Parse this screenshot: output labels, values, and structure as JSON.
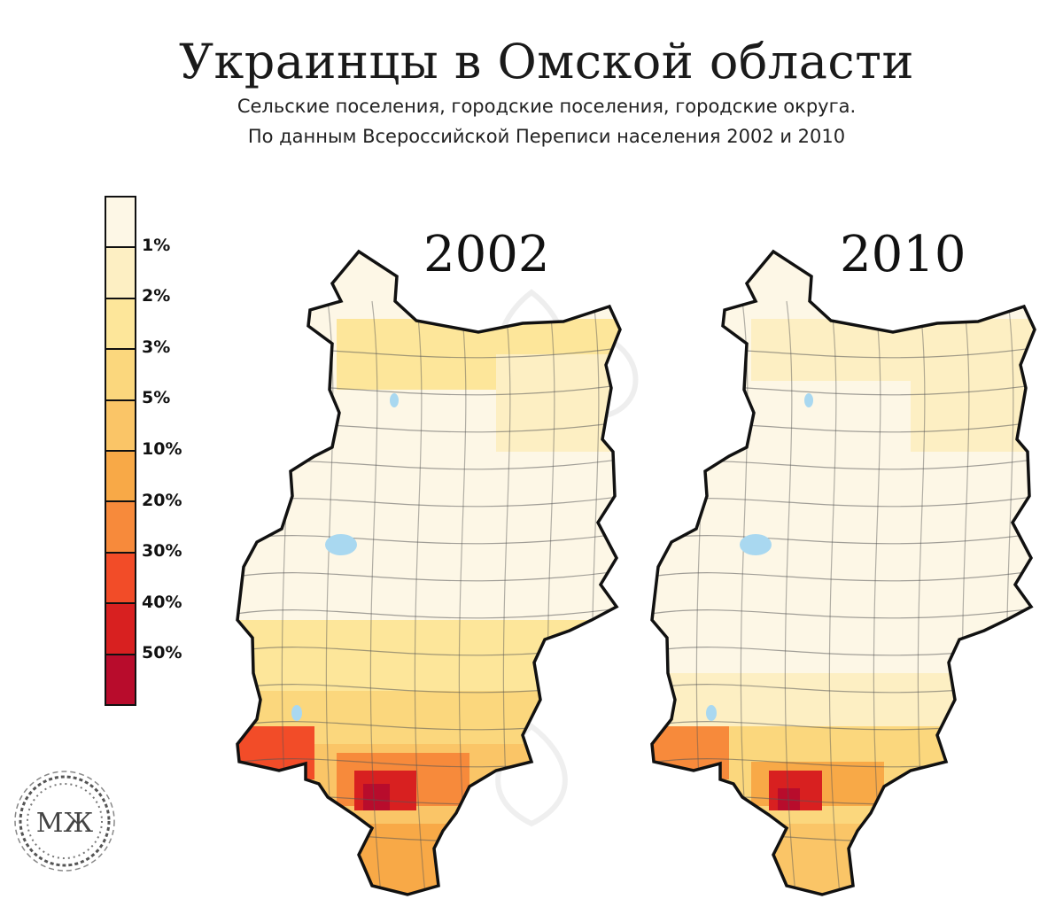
{
  "title": "Украинцы в Омской области",
  "subtitle_1": "Сельские поселения, городские поселения, городские округа.",
  "subtitle_2": "По данным Всероссийской Переписи населения  2002 и 2010",
  "years": {
    "left": "2002",
    "right": "2010"
  },
  "legend": {
    "colors": [
      "#fdf7e6",
      "#fdefc3",
      "#fde69a",
      "#fbd77d",
      "#fac567",
      "#f8a947",
      "#f78a3b",
      "#f24c28",
      "#d82020",
      "#b80c2c"
    ],
    "labels": [
      "1%",
      "2%",
      "3%",
      "5%",
      "10%",
      "20%",
      "30%",
      "40%",
      "50%"
    ]
  },
  "logo": {
    "text": "МЖ",
    "icon": "ornament-wreath-icon"
  },
  "watermark": {
    "icon": "ornament-watermark-icon"
  }
}
